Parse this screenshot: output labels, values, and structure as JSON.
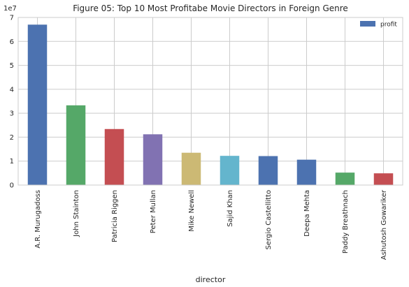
{
  "chart_data": {
    "type": "bar",
    "title": "Figure 05: Top 10 Most Profitabe Movie Directors in Foreign Genre",
    "xlabel": "director",
    "ylabel": "",
    "y_multiplier_label": "1e7",
    "ylim": [
      0,
      70000000
    ],
    "y_ticks": [
      0,
      10000000,
      20000000,
      30000000,
      40000000,
      50000000,
      60000000,
      70000000
    ],
    "y_tick_labels": [
      "0",
      "1",
      "2",
      "3",
      "4",
      "5",
      "6",
      "7"
    ],
    "grid": true,
    "legend": {
      "placement": "top-right",
      "entries": [
        "profit"
      ]
    },
    "categories": [
      "A.R. Murugadoss",
      "John Stainton",
      "Patricia Riggen",
      "Peter Mullan",
      "Mike Newell",
      "Sajid Khan",
      "Sergio Castellitto",
      "Deepa Mehta",
      "Paddy Breathnach",
      "Ashutosh Gowariker"
    ],
    "series": [
      {
        "name": "profit",
        "values": [
          67000000,
          33300000,
          23400000,
          21200000,
          13500000,
          12200000,
          12100000,
          10600000,
          5200000,
          4900000
        ]
      }
    ],
    "bar_colors": [
      "#4c72b0",
      "#55a868",
      "#c44e52",
      "#8172b2",
      "#ccb974",
      "#64b5cd",
      "#4c72b0",
      "#4c72b0",
      "#55a868",
      "#c44e52"
    ],
    "legend_color": "#4c72b0",
    "grid_color": "#cccccc",
    "axes_edge_color": "#cccccc"
  }
}
